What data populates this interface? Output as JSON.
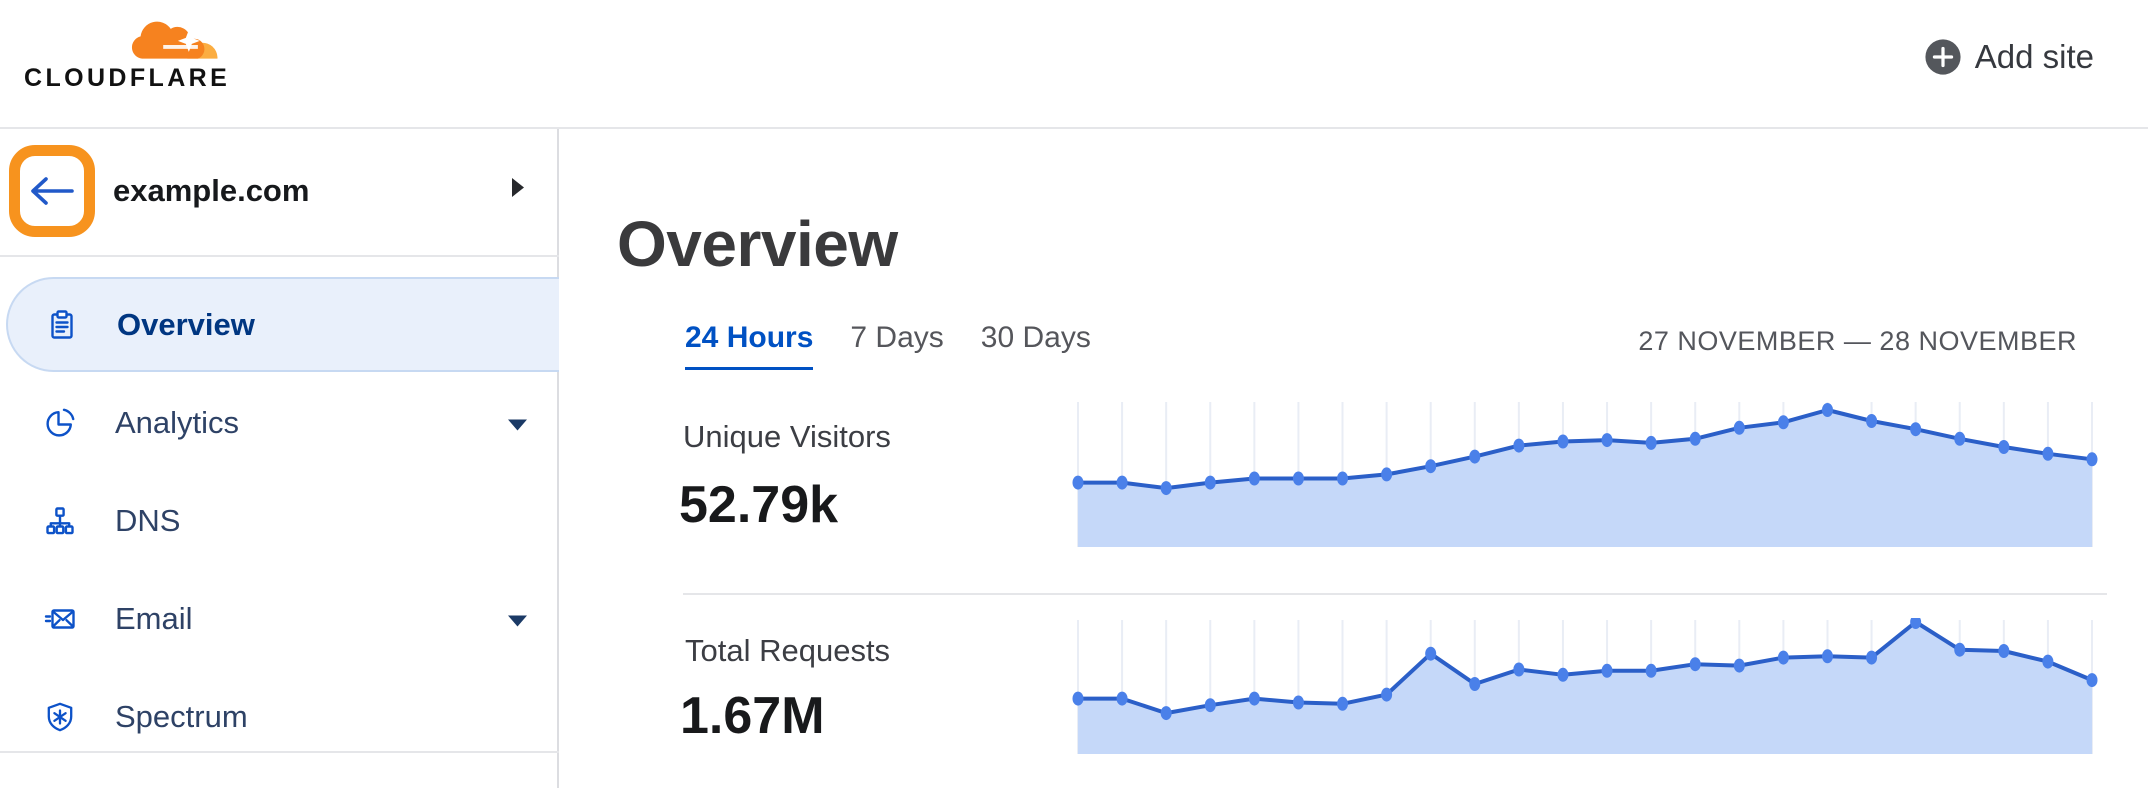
{
  "header": {
    "brand": "CLOUDFLARE",
    "add_site_label": "Add site",
    "icons": {
      "add_site": "plus-circle-icon",
      "logo": "cloudflare-cloud-icon"
    }
  },
  "sidebar": {
    "site": "example.com",
    "back_button": {
      "icon": "back-arrow-icon",
      "highlighted": true,
      "highlight_color": "#F7931E"
    },
    "expand_icon": "chevron-right-icon",
    "items": [
      {
        "label": "Overview",
        "icon": "clipboard-icon",
        "selected": true,
        "caret": false
      },
      {
        "label": "Analytics",
        "icon": "pie-chart-icon",
        "selected": false,
        "caret": true
      },
      {
        "label": "DNS",
        "icon": "dns-tree-icon",
        "selected": false,
        "caret": false
      },
      {
        "label": "Email",
        "icon": "email-icon",
        "selected": false,
        "caret": true
      },
      {
        "label": "Spectrum",
        "icon": "shield-icon",
        "selected": false,
        "caret": false
      }
    ]
  },
  "main": {
    "title": "Overview",
    "time_tabs": [
      {
        "label": "24 Hours",
        "active": true
      },
      {
        "label": "7 Days",
        "active": false
      },
      {
        "label": "30 Days",
        "active": false
      }
    ],
    "date_range": "27 NOVEMBER — 28 NOVEMBER"
  },
  "chart_data": [
    {
      "type": "area",
      "title": "Unique Visitors",
      "value_label": "52.79k",
      "num_points": 24,
      "x_range": "24 hourly points, 27 November — 28 November",
      "x_labels_visible": false,
      "y_labels_visible": false,
      "values_unit": "percent_of_peak",
      "values": [
        47,
        47,
        43,
        47,
        50,
        50,
        50,
        53,
        59,
        66,
        74,
        77,
        78,
        76,
        79,
        87,
        91,
        100,
        92,
        86,
        79,
        73,
        68,
        64
      ],
      "grid": "vertical-only",
      "legend": "none"
    },
    {
      "type": "area",
      "title": "Total Requests",
      "value_label": "1.67M",
      "num_points": 24,
      "x_range": "24 hourly points, 27 November — 28 November",
      "x_labels_visible": false,
      "y_labels_visible": false,
      "values_unit": "percent_of_peak",
      "values": [
        42,
        42,
        31,
        37,
        42,
        39,
        38,
        45,
        76,
        53,
        64,
        60,
        63,
        63,
        68,
        67,
        73,
        74,
        73,
        100,
        79,
        78,
        70,
        56
      ],
      "grid": "vertical-only",
      "legend": "none"
    }
  ],
  "colors": {
    "brand_orange": "#F6821F",
    "brand_orange_light": "#FBAD41",
    "link_blue": "#0051C3",
    "icon_blue": "#0D52C8",
    "nav_text": "#2E4266",
    "nav_selected_text": "#003681",
    "nav_selected_bg": "#E9F0FB",
    "chart_line": "#2B5FC8",
    "chart_dot": "#4A80E9",
    "chart_fill": "#C5D8F9",
    "chart_grid": "#E9EDF5"
  }
}
